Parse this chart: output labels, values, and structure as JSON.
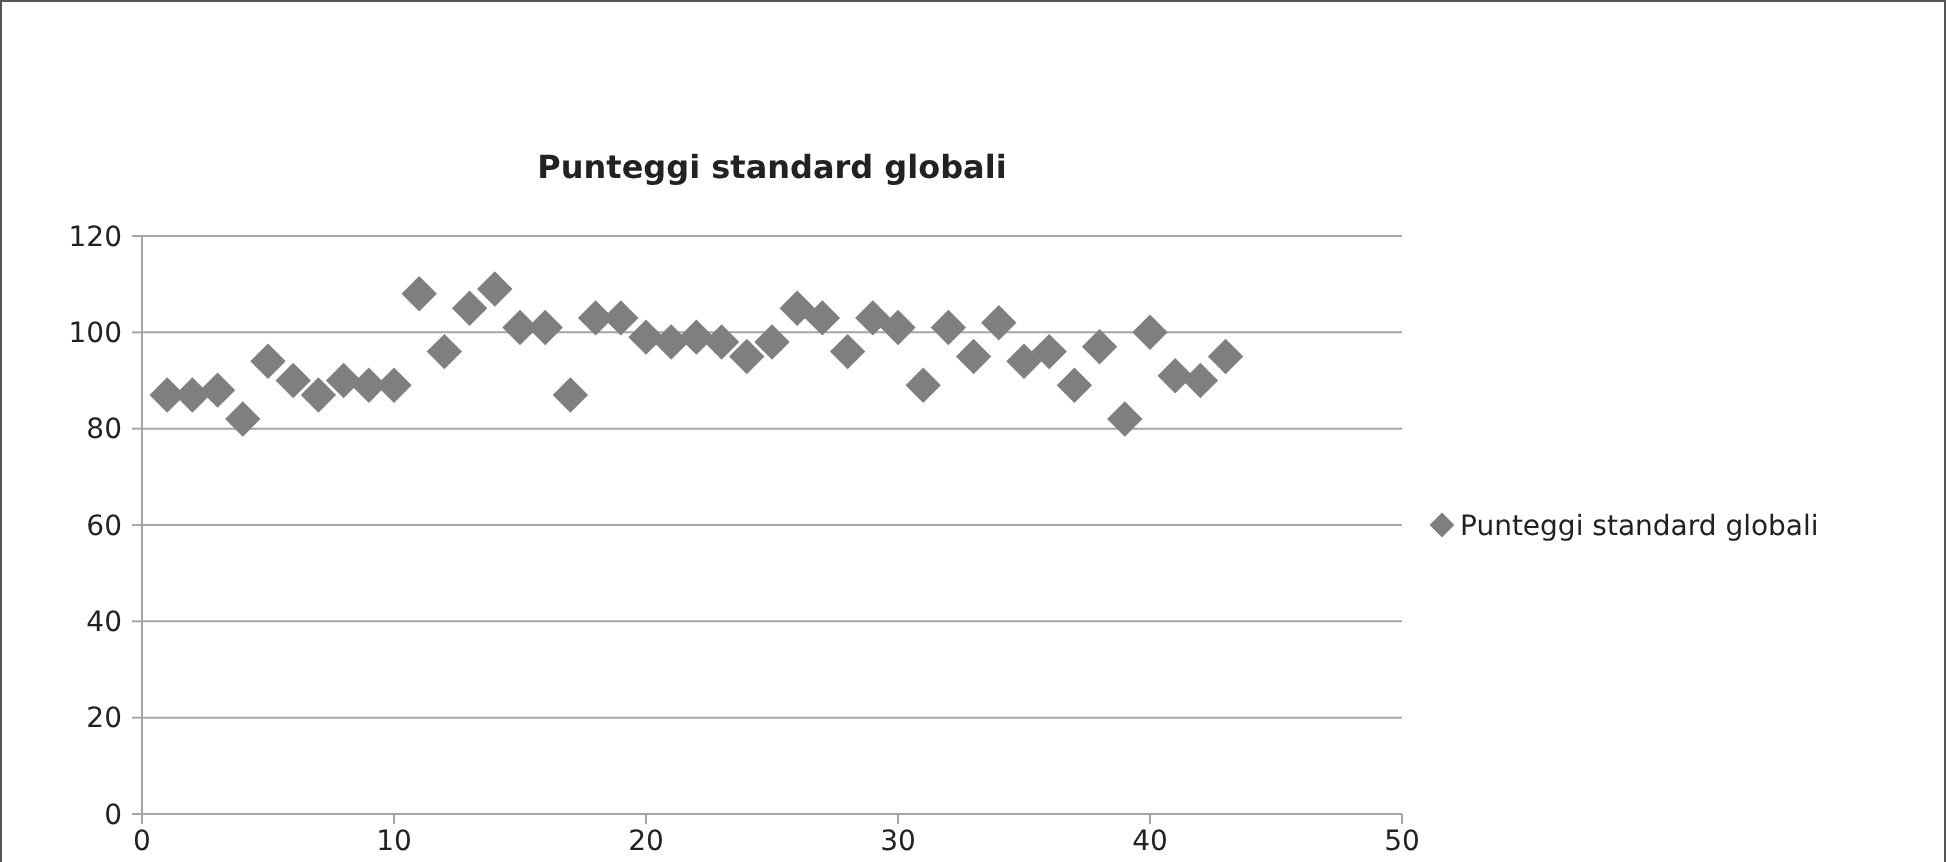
{
  "chart_data": {
    "type": "scatter",
    "title": "Punteggi standard globali",
    "series": [
      {
        "name": "Punteggi standard globali",
        "color": "#7f7f7f",
        "x": [
          1,
          2,
          3,
          4,
          5,
          6,
          7,
          8,
          9,
          10,
          11,
          12,
          13,
          14,
          15,
          16,
          17,
          18,
          19,
          20,
          21,
          22,
          23,
          24,
          25,
          26,
          27,
          28,
          29,
          30,
          31,
          32,
          33,
          34,
          35,
          36,
          37,
          38,
          39,
          40,
          41,
          42,
          43
        ],
        "values": [
          87,
          87,
          88,
          82,
          94,
          90,
          87,
          90,
          89,
          89,
          108,
          96,
          105,
          109,
          101,
          101,
          87,
          103,
          103,
          99,
          98,
          99,
          98,
          95,
          98,
          105,
          103,
          96,
          103,
          101,
          89,
          101,
          95,
          102,
          94,
          96,
          89,
          97,
          82,
          100,
          91,
          90,
          95
        ]
      }
    ],
    "xlim": [
      0,
      50
    ],
    "xticks": [
      0,
      10,
      20,
      30,
      40,
      50
    ],
    "ylim": [
      0,
      120
    ],
    "yticks": [
      0,
      20,
      40,
      60,
      80,
      100,
      120
    ],
    "grid": "y",
    "legend": "right",
    "marker": "diamond"
  }
}
